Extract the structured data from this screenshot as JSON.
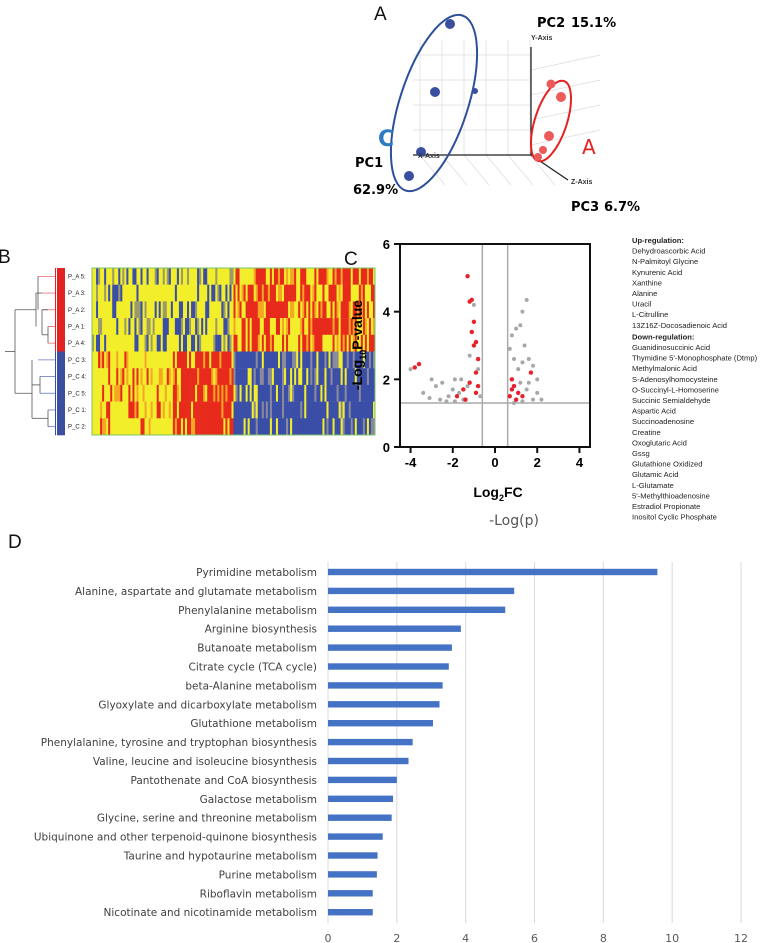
{
  "panel_letters": {
    "a": "A",
    "b": "B",
    "c": "C",
    "d": "D"
  },
  "colors": {
    "blue_group": "#3b4fa0",
    "red_group": "#e52222",
    "bar": "#4472c4",
    "sig_point": "#e8212b",
    "nonsig_point": "#a8a8a8"
  },
  "chart_data": [
    {
      "type": "scatter",
      "axes": {
        "x": "X-Axis",
        "y": "Y-Axis",
        "z": "Z-Axis"
      },
      "pc_labels": {
        "pc1": "PC1",
        "pc1_pct": "62.9%",
        "pc2": "PC2",
        "pc2_pct": "15.1%",
        "pc3": "PC3",
        "pc3_pct": "6.7%"
      },
      "groups": [
        {
          "name": "C",
          "color": "#3b4fa0",
          "n_points": 5
        },
        {
          "name": "A",
          "color": "#e52222",
          "n_points": 5
        }
      ]
    },
    {
      "type": "heatmap",
      "rows": [
        "P_A 5:",
        "P_A 3:",
        "P_A 2:",
        "P_A 1:",
        "P_A 4:",
        "P_C 3:",
        "P_C 4:",
        "P_C 5:",
        "P_C 1:",
        "P_C 2:"
      ],
      "row_groups": [
        "A",
        "A",
        "A",
        "A",
        "A",
        "C",
        "C",
        "C",
        "C",
        "C"
      ],
      "colormap": [
        "#3a4ea8",
        "#f2ee2a",
        "#e82a1c"
      ]
    },
    {
      "type": "scatter",
      "xlabel": "Log2FC",
      "ylabel": "-Log10P-value",
      "xlim": [
        -4.5,
        4.5
      ],
      "ylim": [
        0,
        6
      ],
      "xticks": [
        -4,
        -2,
        0,
        2,
        4
      ],
      "yticks": [
        0,
        2,
        4,
        6
      ],
      "thresholds": {
        "log2fc": [
          -0.6,
          0.6
        ],
        "neglog10p": 1.3
      },
      "points": [
        [
          -3.8,
          2.35,
          1
        ],
        [
          -3.6,
          2.45,
          1
        ],
        [
          -1.3,
          5.05,
          1
        ],
        [
          -1.2,
          4.3,
          1
        ],
        [
          -1.1,
          4.35,
          1
        ],
        [
          -1.0,
          3.7,
          1
        ],
        [
          -1.1,
          3.4,
          1
        ],
        [
          -0.9,
          3.1,
          1
        ],
        [
          -1.0,
          3.0,
          1
        ],
        [
          -0.8,
          2.6,
          1
        ],
        [
          -0.9,
          2.2,
          1
        ],
        [
          -1.2,
          1.9,
          1
        ],
        [
          -1.5,
          1.7,
          1
        ],
        [
          -1.8,
          1.5,
          1
        ],
        [
          -0.8,
          1.8,
          1
        ],
        [
          -0.9,
          1.6,
          1
        ],
        [
          -1.4,
          1.4,
          1
        ],
        [
          0.8,
          2.0,
          1
        ],
        [
          0.9,
          1.8,
          1
        ],
        [
          1.1,
          1.6,
          1
        ],
        [
          0.7,
          1.5,
          1
        ],
        [
          1.0,
          1.4,
          1
        ],
        [
          0.8,
          1.7,
          1
        ],
        [
          1.7,
          2.2,
          1
        ],
        [
          1.3,
          1.5,
          1
        ],
        [
          -4.0,
          2.3,
          0
        ],
        [
          -3.4,
          1.6,
          0
        ],
        [
          -3.0,
          2.0,
          0
        ],
        [
          -2.8,
          1.8,
          0
        ],
        [
          -2.5,
          1.9,
          0
        ],
        [
          -2.2,
          1.5,
          0
        ],
        [
          -2.0,
          1.7,
          0
        ],
        [
          -1.9,
          2.0,
          0
        ],
        [
          -1.7,
          1.6,
          0
        ],
        [
          -1.6,
          2.0,
          0
        ],
        [
          -1.5,
          1.4,
          0
        ],
        [
          -1.3,
          1.8,
          0
        ],
        [
          -1.2,
          2.7,
          0
        ],
        [
          -1.0,
          4.2,
          0
        ],
        [
          -0.8,
          2.3,
          0
        ],
        [
          -2.6,
          1.4,
          0
        ],
        [
          -2.3,
          1.35,
          0
        ],
        [
          -0.7,
          1.5,
          0
        ],
        [
          -1.9,
          1.35,
          0
        ],
        [
          -3.1,
          1.45,
          0
        ],
        [
          1.3,
          4.0,
          0
        ],
        [
          1.5,
          4.35,
          0
        ],
        [
          1.2,
          3.6,
          0
        ],
        [
          1.0,
          3.5,
          0
        ],
        [
          0.8,
          3.3,
          0
        ],
        [
          1.4,
          3.0,
          0
        ],
        [
          1.6,
          2.6,
          0
        ],
        [
          1.3,
          2.5,
          0
        ],
        [
          1.1,
          2.3,
          0
        ],
        [
          0.9,
          2.6,
          0
        ],
        [
          1.8,
          2.4,
          0
        ],
        [
          2.0,
          1.6,
          0
        ],
        [
          1.8,
          1.4,
          0
        ],
        [
          1.5,
          1.7,
          0
        ],
        [
          2.2,
          1.4,
          0
        ],
        [
          0.7,
          2.9,
          0
        ],
        [
          1.2,
          1.9,
          0
        ],
        [
          1.6,
          1.9,
          0
        ],
        [
          2.0,
          2.0,
          0
        ],
        [
          0.9,
          1.3,
          0
        ],
        [
          1.3,
          1.35,
          0
        ]
      ],
      "legend": {
        "up_title": "Up-regulation:",
        "up": [
          "Dehydroascorbic Acid",
          "N-Palmitoyl Glycine",
          "Kynurenic Acid",
          "Xanthine",
          "Alanine",
          "Uracil",
          "L-Citrulline",
          "13Z16Z-Docosadienoic Acid"
        ],
        "down_title": "Down-regulation:",
        "down": [
          "Guanidinosuccinic Acid",
          "Thymidine 5'-Monophosphate (Dtmp)",
          "Methylmalonic Acid",
          "S-Adenosylhomocysteine",
          "O-Succinyl-L-Homoserine",
          "Succinic Semialdehyde",
          "Aspartic Acid",
          "Succinoadenosine",
          "Creatine",
          "Oxoglutaric Acid",
          "Gssg",
          "Glutathione Oxidized",
          "Glutamic Acid",
          "L-Glutamate",
          "5'-Methylthioadenosine",
          "Estradiol Propionate",
          "Inositol Cyclic Phosphate"
        ]
      }
    },
    {
      "type": "bar",
      "orientation": "horizontal",
      "title": "-Log(p)",
      "xlim": [
        0,
        12
      ],
      "xticks": [
        0,
        2,
        4,
        6,
        8,
        10,
        12
      ],
      "grid": true,
      "categories": [
        "Pyrimidine metabolism",
        "Alanine, aspartate and glutamate metabolism",
        "Phenylalanine metabolism",
        "Arginine biosynthesis",
        "Butanoate metabolism",
        "Citrate cycle (TCA cycle)",
        "beta-Alanine metabolism",
        "Glyoxylate and dicarboxylate metabolism",
        "Glutathione metabolism",
        "Phenylalanine, tyrosine and tryptophan biosynthesis",
        "Valine, leucine and isoleucine biosynthesis",
        "Pantothenate and CoA biosynthesis",
        "Galactose metabolism",
        "Glycine, serine and threonine metabolism",
        "Ubiquinone and other terpenoid-quinone biosynthesis",
        "Taurine and hypotaurine metabolism",
        "Purine metabolism",
        "Riboflavin metabolism",
        "Nicotinate and nicotinamide metabolism"
      ],
      "values": [
        9.57,
        5.41,
        5.15,
        3.86,
        3.6,
        3.51,
        3.33,
        3.24,
        3.05,
        2.46,
        2.34,
        2.0,
        1.89,
        1.85,
        1.59,
        1.44,
        1.42,
        1.3,
        1.3
      ]
    }
  ]
}
